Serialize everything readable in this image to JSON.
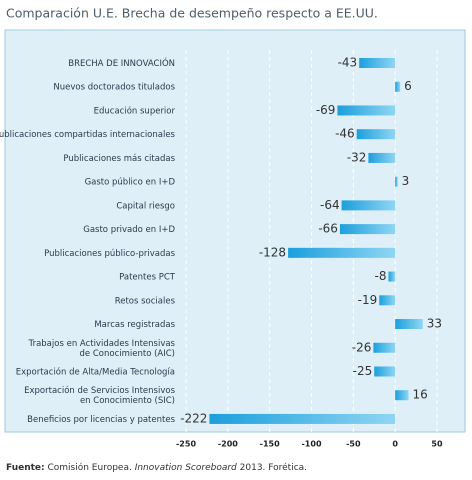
{
  "chart_data": {
    "type": "bar",
    "orientation": "horizontal",
    "title": "Comparación U.E. Brecha de desempeño respecto a EE.UU.",
    "categories": [
      [
        "BRECHA DE INNOVACIÓN"
      ],
      [
        "Nuevos doctorados titulados"
      ],
      [
        "Educación superior"
      ],
      [
        "Publicaciones compartidas internacionales"
      ],
      [
        "Publicaciones más citadas"
      ],
      [
        "Gasto público en I+D"
      ],
      [
        "Capital riesgo"
      ],
      [
        "Gasto privado en I+D"
      ],
      [
        "Publicaciones público-privadas"
      ],
      [
        "Patentes PCT"
      ],
      [
        "Retos sociales"
      ],
      [
        "Marcas registradas"
      ],
      [
        "Trabajos en Actividades Intensivas",
        "de Conocimiento (AIC)"
      ],
      [
        "Exportación de Alta/Media Tecnología"
      ],
      [
        "Exportación de Servicios Intensivos",
        "en Conocimiento (SIC)"
      ],
      [
        "Beneficios por licencias y patentes"
      ]
    ],
    "values": [
      -43,
      6,
      -69,
      -46,
      -32,
      3,
      -64,
      -66,
      -128,
      -8,
      -19,
      33,
      -26,
      -25,
      16,
      -222
    ],
    "color": "#29a9e1",
    "xlim": [
      -250,
      50
    ],
    "xticks": [
      -250,
      -200,
      -150,
      -100,
      -50,
      0,
      50
    ],
    "grid": true,
    "source": {
      "label": "Fuente:",
      "text": " Comisión Europea. ",
      "italic": "Innovation Scoreboard",
      "rest": " 2013. Forética."
    }
  }
}
